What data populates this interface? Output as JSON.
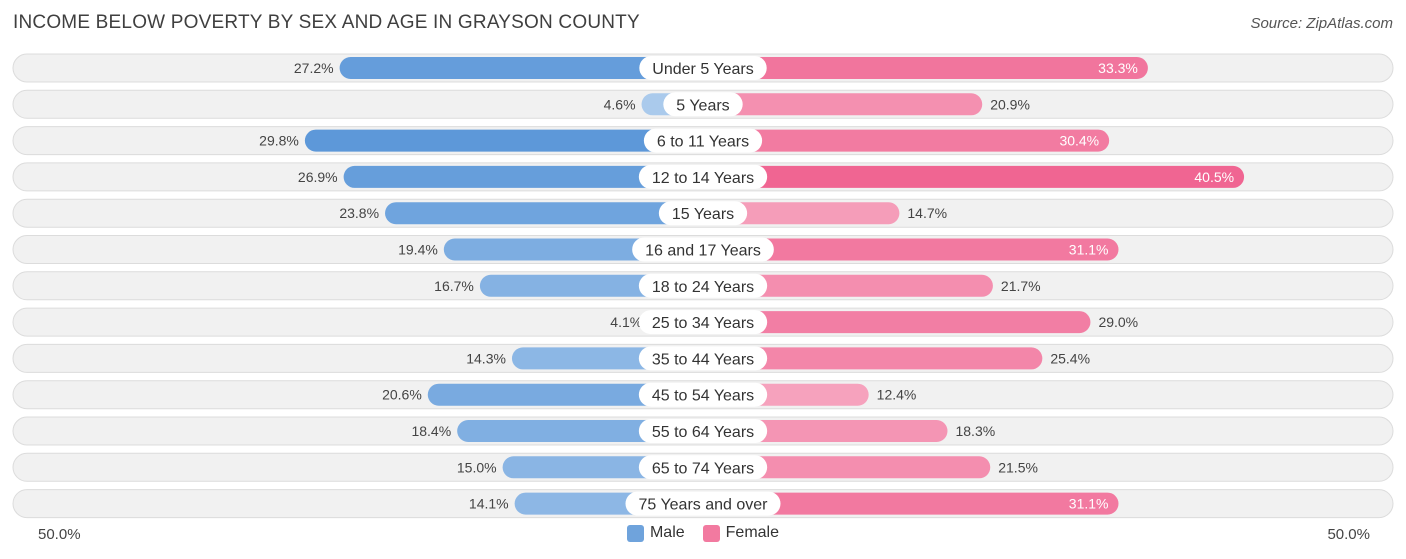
{
  "chart_data": {
    "type": "bar",
    "orientation": "horizontal-diverging",
    "title": "INCOME BELOW POVERTY BY SEX AND AGE IN GRAYSON COUNTY",
    "source": "Source: ZipAtlas.com",
    "categories": [
      "Under 5 Years",
      "5 Years",
      "6 to 11 Years",
      "12 to 14 Years",
      "15 Years",
      "16 and 17 Years",
      "18 to 24 Years",
      "25 to 34 Years",
      "35 to 44 Years",
      "45 to 54 Years",
      "55 to 64 Years",
      "65 to 74 Years",
      "75 Years and over"
    ],
    "series": [
      {
        "name": "Male",
        "values": [
          27.2,
          4.6,
          29.8,
          26.9,
          23.8,
          19.4,
          16.7,
          4.1,
          14.3,
          20.6,
          18.4,
          15.0,
          14.1
        ]
      },
      {
        "name": "Female",
        "values": [
          33.3,
          20.9,
          30.4,
          40.5,
          14.7,
          31.1,
          21.7,
          29.0,
          25.4,
          12.4,
          18.3,
          21.5,
          31.1
        ]
      }
    ],
    "value_labels": {
      "male": [
        "27.2%",
        "4.6%",
        "29.8%",
        "26.9%",
        "23.8%",
        "19.4%",
        "16.7%",
        "4.1%",
        "14.3%",
        "20.6%",
        "18.4%",
        "15.0%",
        "14.1%"
      ],
      "female": [
        "33.3%",
        "20.9%",
        "30.4%",
        "40.5%",
        "14.7%",
        "31.1%",
        "21.7%",
        "29.0%",
        "25.4%",
        "12.4%",
        "18.3%",
        "21.5%",
        "31.1%"
      ]
    },
    "xlim": [
      -50,
      50
    ],
    "axis_left_label": "50.0%",
    "axis_right_label": "50.0%",
    "legend": [
      {
        "name": "Male",
        "color": "#6fa3dc"
      },
      {
        "name": "Female",
        "color": "#f27aa0"
      }
    ]
  }
}
